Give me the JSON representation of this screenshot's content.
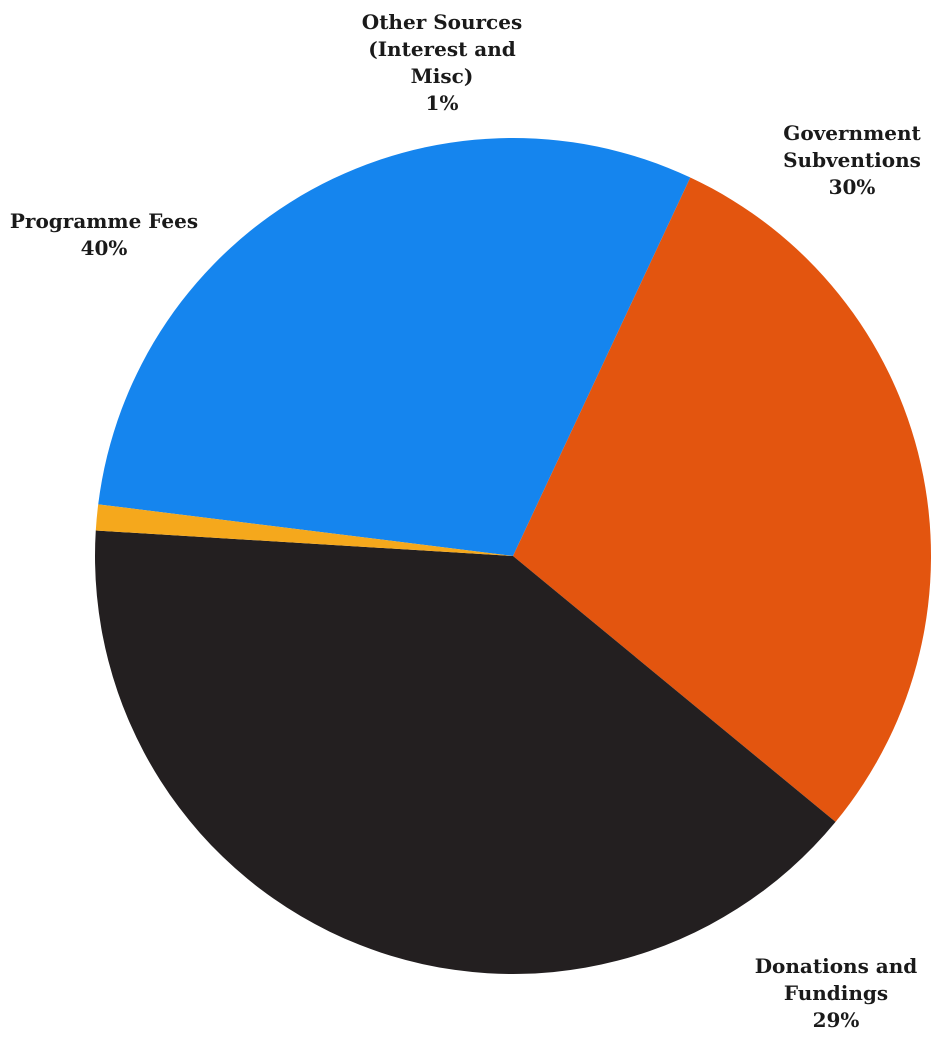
{
  "chart_data": {
    "type": "pie",
    "slices": [
      {
        "label_lines": [
          "Government",
          "Subventions"
        ],
        "value": 30,
        "value_label": "30%",
        "color": "#1585EE"
      },
      {
        "label_lines": [
          "Donations and",
          "Fundings"
        ],
        "value": 29,
        "value_label": "29%",
        "color": "#E3550F"
      },
      {
        "label_lines": [
          "Programme Fees"
        ],
        "value": 40,
        "value_label": "40%",
        "color": "#231F20"
      },
      {
        "label_lines": [
          "Other Sources",
          "(Interest and",
          "Misc)"
        ],
        "value": 1,
        "value_label": "1%",
        "color": "#F5A81C"
      }
    ]
  }
}
